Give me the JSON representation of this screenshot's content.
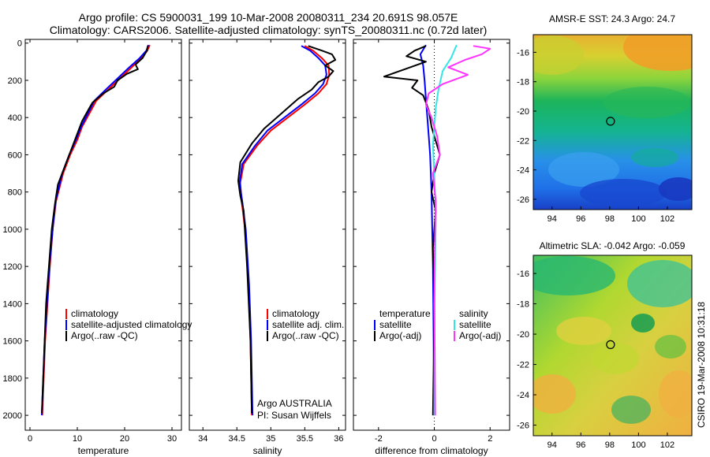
{
  "header": {
    "line1": "Argo profile: CS 5900031_199 10-Mar-2008 20080311_234 20.691S 98.057E",
    "line2": "Climatology: CARS2006. Satellite-adjusted climatology: synTS_20080311.nc (0.72d later)"
  },
  "side_label": "CSIRO 19-Mar-2008 10:31:18",
  "colors": {
    "clim": "#ff0000",
    "sat": "#0000ff",
    "argo": "#000000",
    "sal_sat": "#33e6e6",
    "sal_argo": "#ff33ff",
    "zero": "#33aa44"
  },
  "chart_data": [
    {
      "type": "line",
      "name": "temperature-profile",
      "xlabel": "temperature",
      "ylabel": "",
      "xlim": [
        -1,
        32
      ],
      "ylim": [
        2080,
        -20
      ],
      "xticks": [
        "0",
        "10",
        "20",
        "30"
      ],
      "xtick_values": [
        0,
        10,
        20,
        30
      ],
      "yticks": [
        "0",
        "200",
        "400",
        "600",
        "800",
        "1000",
        "1200",
        "1400",
        "1600",
        "1800",
        "2000"
      ],
      "ytick_values": [
        0,
        200,
        400,
        600,
        800,
        1000,
        1200,
        1400,
        1600,
        1800,
        2000
      ],
      "legend": [
        "climatology",
        "satellite-adjusted climatology",
        "Argo(..raw -QC)"
      ],
      "series": [
        {
          "name": "climatology",
          "color": "#ff0000",
          "x": [
            25.3,
            24.8,
            23.5,
            21.5,
            19,
            16.5,
            14,
            12.5,
            11,
            10,
            8.5,
            7,
            5.5,
            4.8,
            4.2,
            3.7,
            3.2,
            2.6
          ],
          "y": [
            10,
            40,
            80,
            130,
            190,
            250,
            310,
            380,
            450,
            520,
            600,
            700,
            850,
            1000,
            1200,
            1400,
            1600,
            2000
          ]
        },
        {
          "name": "satellite-adjusted climatology",
          "color": "#0000ff",
          "x": [
            25,
            24.6,
            23.2,
            21,
            18.5,
            16,
            13.6,
            12.2,
            10.8,
            9.7,
            8.3,
            6.8,
            5.4,
            4.8,
            4.1,
            3.6,
            3.1,
            2.5
          ],
          "y": [
            10,
            40,
            80,
            130,
            190,
            250,
            310,
            380,
            450,
            520,
            600,
            700,
            850,
            1000,
            1200,
            1400,
            1600,
            2000
          ]
        },
        {
          "name": "Argo(..raw -QC)",
          "color": "#000000",
          "x": [
            24.9,
            24.7,
            23.8,
            22.3,
            22.8,
            20.5,
            18.5,
            17.8,
            15.5,
            13.2,
            12.3,
            11,
            9.8,
            8.6,
            7.4,
            5.9,
            5.3,
            4.6,
            4,
            3.4,
            3.1,
            2.5
          ],
          "y": [
            15,
            40,
            80,
            115,
            140,
            165,
            200,
            235,
            270,
            320,
            360,
            420,
            500,
            580,
            660,
            760,
            860,
            1000,
            1200,
            1400,
            1600,
            1990
          ]
        }
      ]
    },
    {
      "type": "line",
      "name": "salinity-profile",
      "xlabel": "salinity",
      "ylabel": "",
      "xlim": [
        33.8,
        36.1
      ],
      "ylim": [
        2080,
        -20
      ],
      "xticks": [
        "34",
        "34.5",
        "35",
        "35.5",
        "36"
      ],
      "xtick_values": [
        34,
        34.5,
        35,
        35.5,
        36
      ],
      "legend": [
        "climatology",
        "satellite adj. clim.",
        "Argo(..raw -QC)"
      ],
      "annotations": [
        "Argo AUSTRALIA",
        "PI: Susan Wijffels"
      ],
      "series": [
        {
          "name": "climatology",
          "color": "#ff0000",
          "x": [
            35.5,
            35.62,
            35.75,
            35.85,
            35.86,
            35.82,
            35.7,
            35.5,
            35.25,
            35.0,
            34.8,
            34.6,
            34.55,
            34.57,
            34.62,
            34.67,
            34.7,
            34.72
          ],
          "y": [
            15,
            40,
            80,
            120,
            170,
            220,
            270,
            330,
            400,
            470,
            550,
            650,
            750,
            850,
            1000,
            1300,
            1600,
            2000
          ]
        },
        {
          "name": "satellite adj. clim.",
          "color": "#0000ff",
          "x": [
            35.45,
            35.58,
            35.7,
            35.8,
            35.82,
            35.77,
            35.65,
            35.45,
            35.2,
            34.95,
            34.77,
            34.58,
            34.54,
            34.58,
            34.63,
            34.68,
            34.71,
            34.73
          ],
          "y": [
            15,
            40,
            80,
            120,
            170,
            220,
            270,
            330,
            400,
            470,
            550,
            650,
            750,
            850,
            1000,
            1300,
            1600,
            2000
          ]
        },
        {
          "name": "Argo(..raw -QC)",
          "color": "#000000",
          "x": [
            35.55,
            35.75,
            35.9,
            35.95,
            35.8,
            35.92,
            35.85,
            35.7,
            35.6,
            35.4,
            35.15,
            34.9,
            34.72,
            34.55,
            34.52,
            34.55,
            34.6,
            34.65,
            34.7,
            34.72
          ],
          "y": [
            15,
            40,
            60,
            90,
            120,
            150,
            180,
            210,
            250,
            300,
            380,
            460,
            540,
            640,
            740,
            820,
            900,
            1200,
            1600,
            1990
          ]
        }
      ]
    },
    {
      "type": "line",
      "name": "difference-profile",
      "xlabel": "difference from climatology",
      "ylabel": "",
      "xlim": [
        -2.9,
        2.7
      ],
      "ylim": [
        2080,
        -20
      ],
      "xticks": [
        "-2",
        "0",
        "2"
      ],
      "xtick_values": [
        -2,
        0,
        2
      ],
      "legend_left_title": "temperature",
      "legend_right_title": "salinity",
      "legend": [
        "satellite",
        "Argo(-adj)",
        "satellite",
        "Argo(-adj)"
      ],
      "series": [
        {
          "name": "temperature satellite",
          "color": "#0000ff",
          "x": [
            -0.3,
            -0.5,
            -0.4,
            -0.35,
            -0.3,
            -0.25,
            -0.2,
            -0.15,
            -0.1,
            -0.05,
            0
          ],
          "y": [
            10,
            60,
            120,
            200,
            300,
            400,
            500,
            600,
            800,
            1200,
            2000
          ]
        },
        {
          "name": "temperature Argo(-adj)",
          "color": "#000000",
          "x": [
            -0.3,
            -0.7,
            -1.0,
            -0.3,
            -1.8,
            -0.6,
            -0.8,
            -0.4,
            -0.2,
            -0.1,
            0.2,
            0,
            -0.1,
            0.05,
            -0.05,
            0,
            -0.02,
            -0.05
          ],
          "y": [
            15,
            40,
            70,
            100,
            180,
            200,
            240,
            280,
            360,
            450,
            600,
            700,
            800,
            900,
            1100,
            1400,
            1700,
            2000
          ]
        },
        {
          "name": "salinity satellite",
          "color": "#33e6e6",
          "x": [
            0.8,
            0.6,
            0.3,
            0.15,
            0.05,
            0,
            -0.05,
            0,
            0.05,
            0.02,
            0
          ],
          "y": [
            10,
            80,
            150,
            250,
            350,
            450,
            550,
            700,
            900,
            1300,
            2000
          ]
        },
        {
          "name": "salinity Argo(-adj)",
          "color": "#ff33ff",
          "x": [
            1.4,
            2.0,
            1.7,
            1.1,
            0.5,
            1.2,
            0.3,
            -0.2,
            -0.3,
            -0.1,
            0.1,
            0.2,
            -0.05,
            0.05,
            0.02,
            0,
            0.02,
            0.03
          ],
          "y": [
            15,
            30,
            60,
            90,
            130,
            170,
            220,
            270,
            330,
            400,
            500,
            600,
            700,
            850,
            1100,
            1400,
            1700,
            2000
          ]
        }
      ]
    },
    {
      "type": "heatmap",
      "name": "sst-map",
      "title": "AMSR-E SST: 24.3 Argo: 24.7",
      "xlim": [
        92.7,
        103.7
      ],
      "ylim": [
        -26.7,
        -14.8
      ],
      "xticks": [
        "94",
        "96",
        "98",
        "100",
        "102"
      ],
      "xtick_values": [
        94,
        96,
        98,
        100,
        102
      ],
      "yticks": [
        "-16",
        "-18",
        "-20",
        "-22",
        "-24",
        "-26"
      ],
      "ytick_values": [
        -16,
        -18,
        -20,
        -22,
        -24,
        -26
      ],
      "marker": {
        "lon": 98.057,
        "lat": -20.691
      }
    },
    {
      "type": "heatmap",
      "name": "sla-map",
      "title": "Altimetric SLA: -0.042 Argo: -0.059",
      "xlim": [
        92.7,
        103.7
      ],
      "ylim": [
        -26.7,
        -14.8
      ],
      "xticks": [
        "94",
        "96",
        "98",
        "100",
        "102"
      ],
      "xtick_values": [
        94,
        96,
        98,
        100,
        102
      ],
      "yticks": [
        "-16",
        "-18",
        "-20",
        "-22",
        "-24",
        "-26"
      ],
      "ytick_values": [
        -16,
        -18,
        -20,
        -22,
        -24,
        -26
      ],
      "marker": {
        "lon": 98.057,
        "lat": -20.691
      }
    }
  ]
}
